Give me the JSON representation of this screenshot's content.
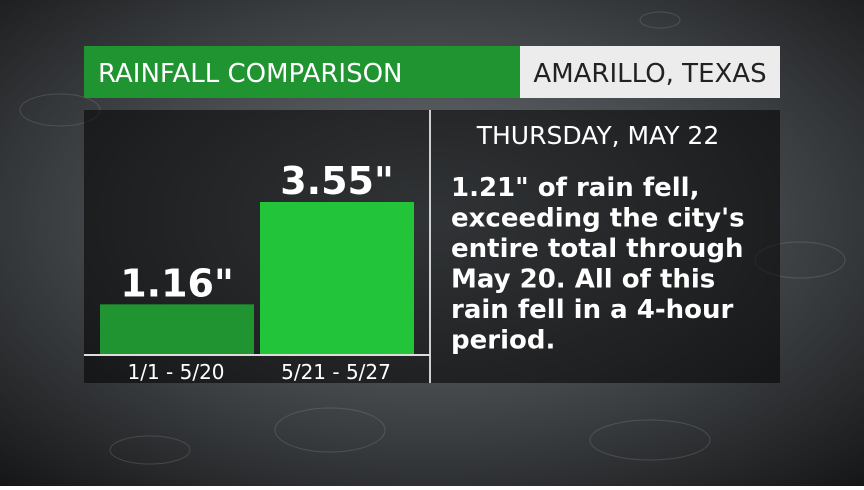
{
  "chart_data": {
    "type": "bar",
    "title": "RAINFALL COMPARISON",
    "location": "AMARILLO, TEXAS",
    "date": "THURSDAY, MAY 22",
    "note_lines": [
      "1.21\" of rain fell,",
      "exceeding the city's",
      "entire total through",
      "May 20. All of this",
      "rain fell in a 4-hour",
      "period."
    ],
    "categories": [
      "1/1 - 5/20",
      "5/21 - 5/27"
    ],
    "values": [
      1.16,
      3.55
    ],
    "value_labels": [
      "1.16\"",
      "3.55\""
    ],
    "colors": [
      "#1f9431",
      "#22c43a"
    ]
  }
}
